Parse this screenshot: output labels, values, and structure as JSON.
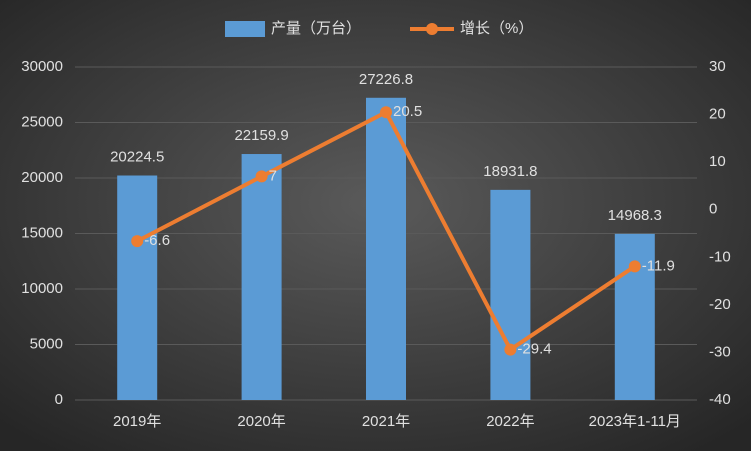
{
  "chart_data": {
    "type": "bar",
    "categories": [
      "2019年",
      "2020年",
      "2021年",
      "2022年",
      "2023年1-11月"
    ],
    "series": [
      {
        "name": "产量（万台）",
        "type": "bar",
        "color": "#5b9bd5",
        "values": [
          20224.5,
          22159.9,
          27226.8,
          18931.8,
          14968.3
        ]
      },
      {
        "name": "增长（%）",
        "type": "line",
        "axis": "y2",
        "color": "#ed7d31",
        "values": [
          -6.6,
          7,
          20.5,
          -29.4,
          -11.9
        ]
      }
    ],
    "ylim": [
      0,
      30000
    ],
    "yticks": [
      0,
      5000,
      10000,
      15000,
      20000,
      25000,
      30000
    ],
    "y2lim": [
      -40,
      30
    ],
    "y2ticks": [
      -40,
      -30,
      -20,
      -10,
      0,
      10,
      20,
      30
    ],
    "grid": true
  }
}
